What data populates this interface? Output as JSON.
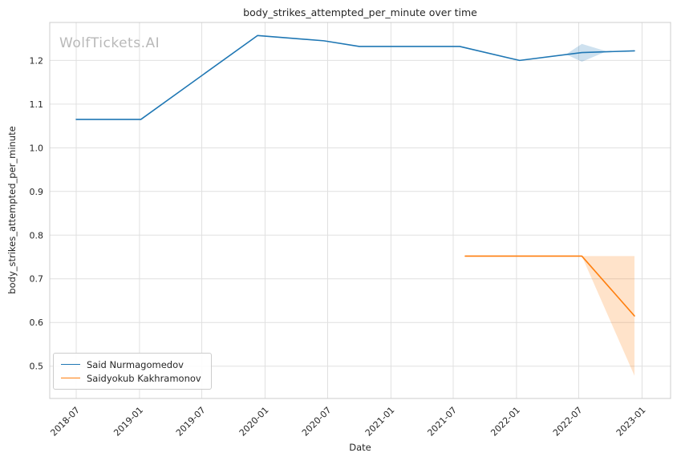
{
  "watermark": "WolfTickets.AI",
  "chart_data": {
    "type": "line",
    "title": "body_strikes_attempted_per_minute over time",
    "xlabel": "Date",
    "ylabel": "body_strikes_attempted_per_minute",
    "grid": true,
    "legend_position": "lower left",
    "x_tick_labels": [
      "2018-07",
      "2019-01",
      "2019-07",
      "2020-01",
      "2020-07",
      "2021-01",
      "2021-07",
      "2022-01",
      "2022-07",
      "2023-01"
    ],
    "y_ticks": [
      0.5,
      0.6,
      0.7,
      0.8,
      0.9,
      1.0,
      1.1,
      1.2
    ],
    "xlim": [
      "2018-04-15",
      "2023-03-25"
    ],
    "ylim": [
      0.426,
      1.287
    ],
    "colors": {
      "grid": "#e0e0e0",
      "spine": "#cccccc",
      "tick_text": "#262626"
    },
    "series": [
      {
        "name": "Said Nurmagomedov",
        "color": "#1f77b4",
        "points": [
          [
            "2018-07-01",
            1.065
          ],
          [
            "2019-01-05",
            1.065
          ],
          [
            "2019-12-10",
            1.257
          ],
          [
            "2020-06-20",
            1.245
          ],
          [
            "2020-10-01",
            1.232
          ],
          [
            "2021-07-20",
            1.232
          ],
          [
            "2022-01-10",
            1.2
          ],
          [
            "2022-07-10",
            1.218
          ],
          [
            "2022-12-10",
            1.222
          ]
        ],
        "band": [
          [
            "2022-05-25",
            1.214,
            1.214
          ],
          [
            "2022-07-10",
            1.197,
            1.238
          ],
          [
            "2022-09-20",
            1.221,
            1.221
          ]
        ]
      },
      {
        "name": "Saidyokub Kakhramonov",
        "color": "#ff7f0e",
        "points": [
          [
            "2021-08-05",
            0.752
          ],
          [
            "2022-07-10",
            0.752
          ],
          [
            "2022-12-10",
            0.615
          ]
        ],
        "band": [
          [
            "2022-07-10",
            0.752,
            0.752
          ],
          [
            "2022-12-10",
            0.478,
            0.752
          ]
        ]
      }
    ]
  }
}
